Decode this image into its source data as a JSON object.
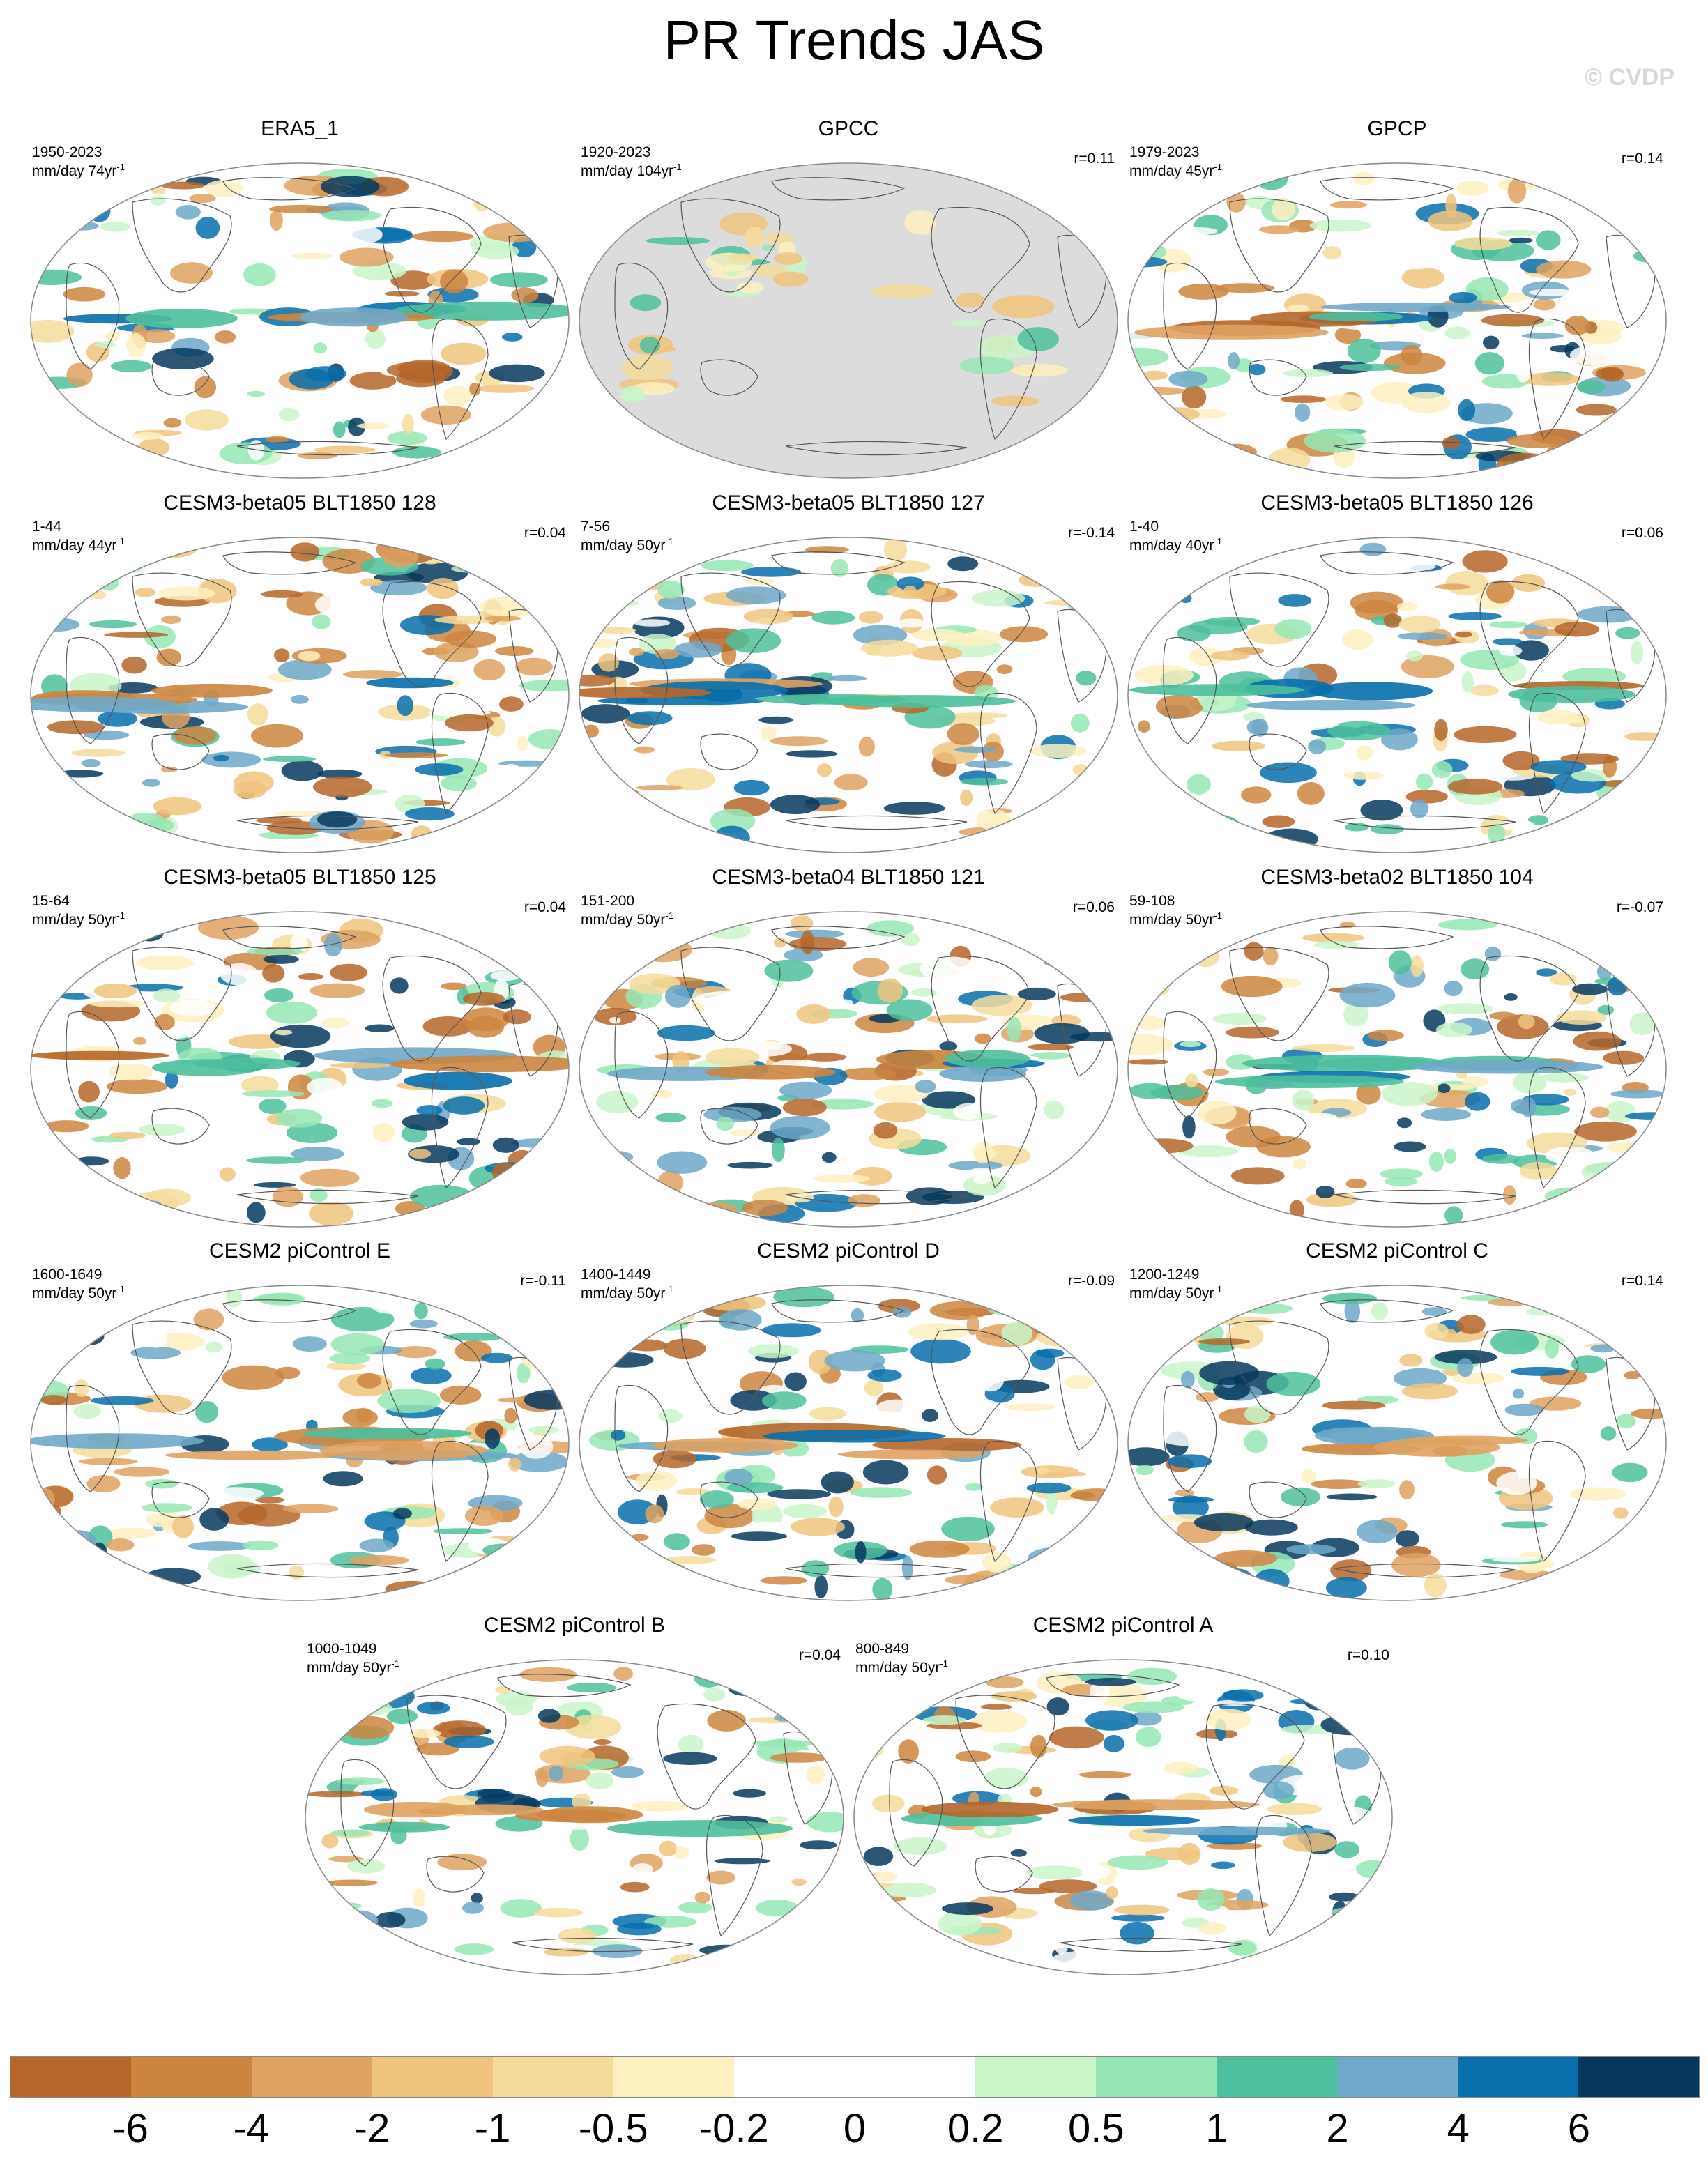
{
  "page": {
    "title": "PR Trends JAS",
    "credit": "© CVDP"
  },
  "panels": [
    {
      "title": "ERA5_1",
      "years": "1950-2023",
      "units": "mm/day 74yr",
      "sup": "-1",
      "corr": "",
      "land_masked": false
    },
    {
      "title": "GPCC",
      "years": "1920-2023",
      "units": "mm/day 104yr",
      "sup": "-1",
      "corr": "r=0.11",
      "land_masked": true
    },
    {
      "title": "GPCP",
      "years": "1979-2023",
      "units": "mm/day 45yr",
      "sup": "-1",
      "corr": "r=0.14",
      "land_masked": false
    },
    {
      "title": "CESM3-beta05 BLT1850 128",
      "years": "1-44",
      "units": "mm/day 44yr",
      "sup": "-1",
      "corr": "r=0.04",
      "land_masked": false
    },
    {
      "title": "CESM3-beta05 BLT1850 127",
      "years": "7-56",
      "units": "mm/day 50yr",
      "sup": "-1",
      "corr": "r=-0.14",
      "land_masked": false
    },
    {
      "title": "CESM3-beta05 BLT1850 126",
      "years": "1-40",
      "units": "mm/day 40yr",
      "sup": "-1",
      "corr": "r=0.06",
      "land_masked": false
    },
    {
      "title": "CESM3-beta05 BLT1850 125",
      "years": "15-64",
      "units": "mm/day 50yr",
      "sup": "-1",
      "corr": "r=0.04",
      "land_masked": false
    },
    {
      "title": "CESM3-beta04 BLT1850 121",
      "years": "151-200",
      "units": "mm/day 50yr",
      "sup": "-1",
      "corr": "r=0.06",
      "land_masked": false
    },
    {
      "title": "CESM3-beta02 BLT1850 104",
      "years": "59-108",
      "units": "mm/day 50yr",
      "sup": "-1",
      "corr": "r=-0.07",
      "land_masked": false
    },
    {
      "title": "CESM2 piControl E",
      "years": "1600-1649",
      "units": "mm/day 50yr",
      "sup": "-1",
      "corr": "r=-0.11",
      "land_masked": false
    },
    {
      "title": "CESM2 piControl D",
      "years": "1400-1449",
      "units": "mm/day 50yr",
      "sup": "-1",
      "corr": "r=-0.09",
      "land_masked": false
    },
    {
      "title": "CESM2 piControl C",
      "years": "1200-1249",
      "units": "mm/day 50yr",
      "sup": "-1",
      "corr": "r=0.14",
      "land_masked": false
    },
    {
      "title": "CESM2 piControl B",
      "years": "1000-1049",
      "units": "mm/day 50yr",
      "sup": "-1",
      "corr": "r=0.04",
      "land_masked": false
    },
    {
      "title": "CESM2 piControl A",
      "years": "800-849",
      "units": "mm/day 50yr",
      "sup": "-1",
      "corr": "r=0.10",
      "land_masked": false
    }
  ],
  "colorbar": {
    "colors": [
      "#b5662a",
      "#cc853f",
      "#dea262",
      "#f0c47f",
      "#f5dc9c",
      "#fdf0c0",
      "#ffffff",
      "#ffffff",
      "#c9f5c9",
      "#96e6b4",
      "#4dbf9c",
      "#6fa8c8",
      "#086fac",
      "#06385e"
    ],
    "labels": [
      "-6",
      "-4",
      "-2",
      "-1",
      "-0.5",
      "-0.2",
      "0",
      "0.2",
      "0.5",
      "1",
      "2",
      "4",
      "6"
    ]
  },
  "colors": {
    "land_mask": "#dcdcdc",
    "coastline": "#555555"
  }
}
